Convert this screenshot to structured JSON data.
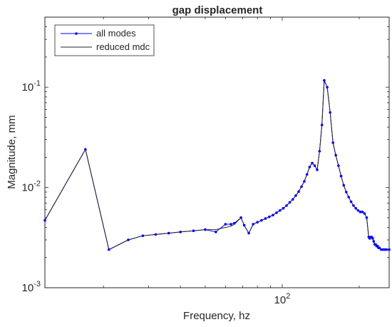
{
  "chart_data": {
    "type": "line",
    "title": "gap displacement",
    "xlabel": "Frequency, hz",
    "ylabel": "Magnitude, mm",
    "x_scale": "log",
    "y_scale": "log",
    "xlim": [
      11.8,
      262
    ],
    "ylim": [
      0.001,
      0.5
    ],
    "y_ticks": [
      {
        "value": 0.001,
        "base": "10",
        "exp": "-3"
      },
      {
        "value": 0.01,
        "base": "10",
        "exp": "-2"
      },
      {
        "value": 0.1,
        "base": "10",
        "exp": "-1"
      }
    ],
    "x_ticks": [
      {
        "value": 100,
        "base": "10",
        "exp": "2"
      }
    ],
    "grid": false,
    "legend_position": "top-left",
    "legend": [
      {
        "label": "all modes",
        "color": "#0000ff",
        "marker": "dot"
      },
      {
        "label": "reduced mdc",
        "color": "#262626",
        "marker": "none"
      }
    ],
    "series": [
      {
        "name": "all modes",
        "color": "#0000ff",
        "x": [
          11.8,
          17,
          21,
          25,
          28.5,
          32,
          36,
          40,
          45,
          50,
          55,
          60,
          63,
          65,
          69,
          71,
          74,
          77,
          80,
          83,
          86,
          89,
          92,
          95,
          98,
          101,
          104,
          107,
          110,
          113,
          116,
          119,
          122,
          125,
          128,
          131,
          134,
          137,
          140,
          143,
          146,
          150,
          154,
          158,
          162,
          166,
          170,
          174,
          178,
          182,
          186,
          190,
          194,
          198,
          202,
          206,
          210,
          214,
          218,
          220,
          222,
          224,
          226,
          228,
          230,
          232,
          234,
          236,
          238,
          240,
          244,
          248,
          252,
          256,
          262
        ],
        "y": [
          0.0047,
          0.024,
          0.0024,
          0.003,
          0.0033,
          0.0034,
          0.0035,
          0.0036,
          0.0037,
          0.0038,
          0.0036,
          0.0043,
          0.0043,
          0.0044,
          0.005,
          0.0042,
          0.0035,
          0.0043,
          0.0045,
          0.0047,
          0.0049,
          0.0051,
          0.0053,
          0.0056,
          0.0059,
          0.0062,
          0.0066,
          0.0071,
          0.0076,
          0.0083,
          0.0091,
          0.0102,
          0.0115,
          0.0135,
          0.016,
          0.0175,
          0.0165,
          0.015,
          0.023,
          0.042,
          0.117,
          0.1,
          0.056,
          0.028,
          0.021,
          0.0165,
          0.013,
          0.0105,
          0.009,
          0.008,
          0.0072,
          0.0066,
          0.0062,
          0.0059,
          0.0057,
          0.0057,
          0.0055,
          0.005,
          0.0032,
          0.0031,
          0.0032,
          0.0032,
          0.0031,
          0.0029,
          0.0027,
          0.0027,
          0.0026,
          0.0026,
          0.0025,
          0.0025,
          0.0024,
          0.0024,
          0.0024,
          0.0024,
          0.0024
        ]
      },
      {
        "name": "reduced mdc",
        "color": "#262626",
        "x": [
          11.8,
          17,
          21,
          25,
          28.5,
          32,
          36,
          40,
          45,
          50,
          55,
          60,
          63,
          65,
          69,
          71,
          74,
          77,
          80,
          83,
          86,
          89,
          92,
          95,
          98,
          101,
          104,
          107,
          110,
          113,
          116,
          119,
          122,
          125,
          128,
          131,
          134,
          137,
          140,
          143,
          146,
          150,
          154,
          158,
          162,
          166,
          170,
          174,
          178,
          182,
          186,
          190,
          194,
          198,
          202,
          206,
          210,
          214,
          218,
          220,
          222,
          224,
          226,
          228,
          230,
          232,
          234,
          236,
          238,
          240,
          244,
          248,
          252,
          256,
          262
        ],
        "y": [
          0.0047,
          0.024,
          0.0024,
          0.003,
          0.0033,
          0.0034,
          0.0035,
          0.0036,
          0.0037,
          0.0038,
          0.0038,
          0.004,
          0.0041,
          0.0043,
          0.005,
          0.0042,
          0.0035,
          0.0043,
          0.0045,
          0.0047,
          0.0049,
          0.0051,
          0.0053,
          0.0056,
          0.0059,
          0.0062,
          0.0066,
          0.0071,
          0.0076,
          0.0083,
          0.0091,
          0.0102,
          0.0115,
          0.0135,
          0.016,
          0.0175,
          0.0165,
          0.015,
          0.023,
          0.042,
          0.117,
          0.1,
          0.056,
          0.028,
          0.021,
          0.0165,
          0.013,
          0.0105,
          0.009,
          0.008,
          0.0072,
          0.0066,
          0.0062,
          0.0059,
          0.0057,
          0.0057,
          0.0055,
          0.005,
          0.0032,
          0.0031,
          0.0032,
          0.0032,
          0.0031,
          0.0029,
          0.0027,
          0.0027,
          0.0026,
          0.0026,
          0.0025,
          0.0025,
          0.0024,
          0.0024,
          0.0024,
          0.0024,
          0.0024
        ]
      }
    ]
  }
}
